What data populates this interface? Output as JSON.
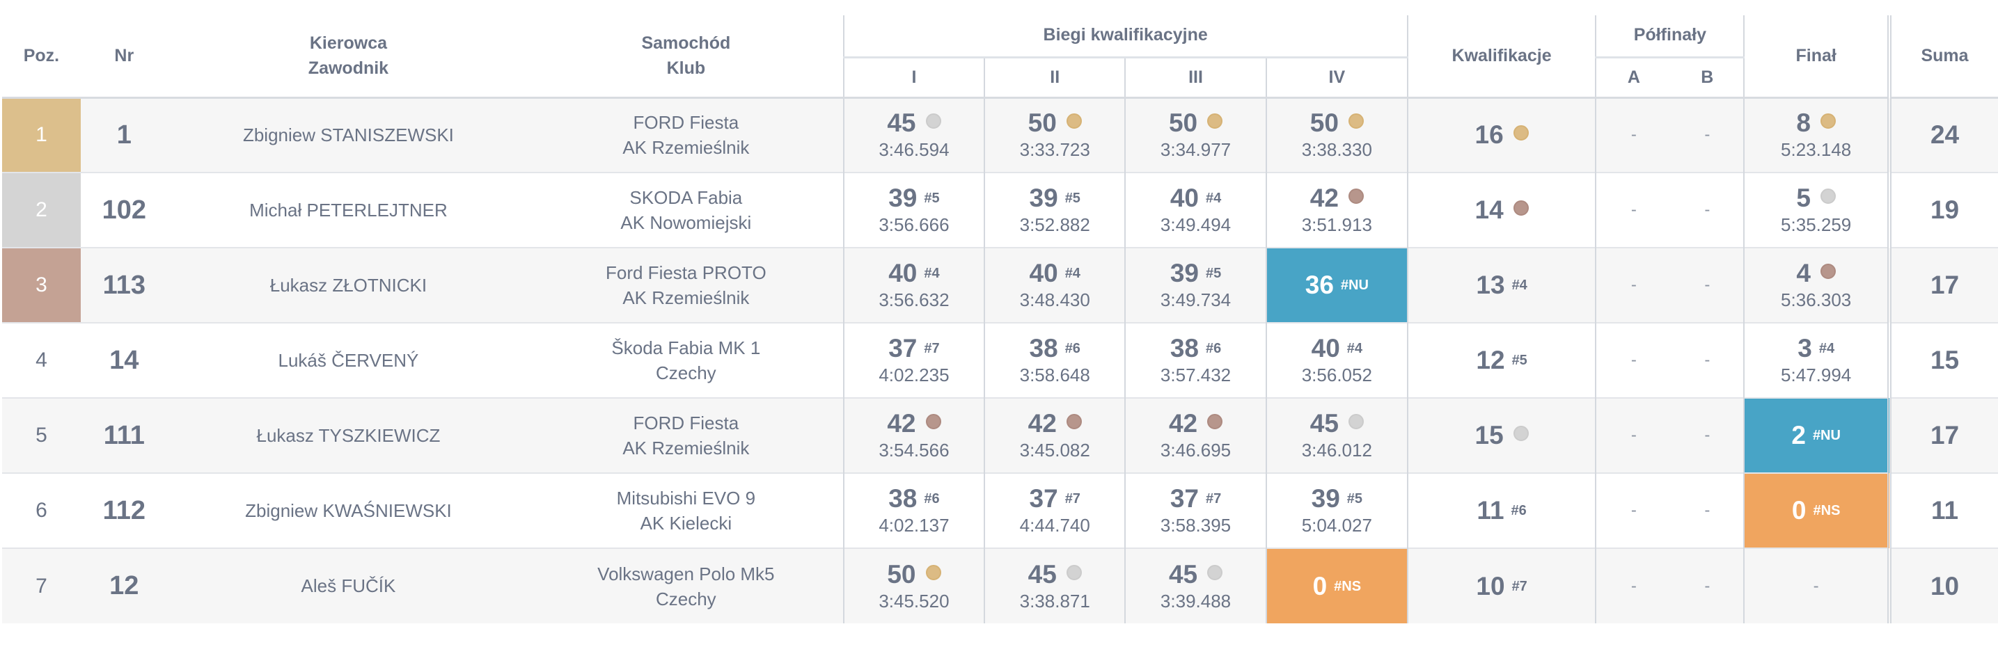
{
  "header": {
    "pos": "Poz.",
    "nr": "Nr",
    "driver_line1": "Kierowca",
    "driver_line2": "Zawodnik",
    "car_line1": "Samochód",
    "car_line2": "Klub",
    "heats": "Biegi kwalifikacyjne",
    "heat_labels": [
      "I",
      "II",
      "III",
      "IV"
    ],
    "qualification": "Kwalifikacje",
    "semifinals": "Półfinały",
    "semi_labels": [
      "A",
      "B"
    ],
    "final": "Finał",
    "sum": "Suma"
  },
  "rows": [
    {
      "pos": "1",
      "nr": "1",
      "driver": "Zbigniew STANISZEWSKI",
      "car": "FORD Fiesta",
      "club": "AK Rzemieślnik",
      "heats": [
        {
          "pts": "45",
          "mark": "silver",
          "time": "3:46.594"
        },
        {
          "pts": "50",
          "mark": "gold",
          "time": "3:33.723"
        },
        {
          "pts": "50",
          "mark": "gold",
          "time": "3:34.977"
        },
        {
          "pts": "50",
          "mark": "gold",
          "time": "3:38.330"
        }
      ],
      "qual": {
        "pts": "16",
        "mark": "gold"
      },
      "semi_a": "-",
      "semi_b": "-",
      "final": {
        "pts": "8",
        "mark": "gold",
        "time": "5:23.148"
      },
      "sum": "24"
    },
    {
      "pos": "2",
      "nr": "102",
      "driver": "Michał PETERLEJTNER",
      "car": "SKODA Fabia",
      "club": "AK Nowomiejski",
      "heats": [
        {
          "pts": "39",
          "tag": "#5",
          "time": "3:56.666"
        },
        {
          "pts": "39",
          "tag": "#5",
          "time": "3:52.882"
        },
        {
          "pts": "40",
          "tag": "#4",
          "time": "3:49.494"
        },
        {
          "pts": "42",
          "mark": "bronze",
          "time": "3:51.913"
        }
      ],
      "qual": {
        "pts": "14",
        "mark": "bronze"
      },
      "semi_a": "-",
      "semi_b": "-",
      "final": {
        "pts": "5",
        "mark": "silver",
        "time": "5:35.259"
      },
      "sum": "19"
    },
    {
      "pos": "3",
      "nr": "113",
      "driver": "Łukasz ZŁOTNICKI",
      "car": "Ford Fiesta PROTO",
      "club": "AK Rzemieślnik",
      "heats": [
        {
          "pts": "40",
          "tag": "#4",
          "time": "3:56.632"
        },
        {
          "pts": "40",
          "tag": "#4",
          "time": "3:48.430"
        },
        {
          "pts": "39",
          "tag": "#5",
          "time": "3:49.734"
        },
        {
          "pts": "36",
          "tag": "#NU",
          "highlight": "blue"
        }
      ],
      "qual": {
        "pts": "13",
        "tag": "#4"
      },
      "semi_a": "-",
      "semi_b": "-",
      "final": {
        "pts": "4",
        "mark": "bronze",
        "time": "5:36.303"
      },
      "sum": "17"
    },
    {
      "pos": "4",
      "nr": "14",
      "driver": "Lukáš ČERVENÝ",
      "car": "Škoda Fabia MK 1",
      "club": "Czechy",
      "heats": [
        {
          "pts": "37",
          "tag": "#7",
          "time": "4:02.235"
        },
        {
          "pts": "38",
          "tag": "#6",
          "time": "3:58.648"
        },
        {
          "pts": "38",
          "tag": "#6",
          "time": "3:57.432"
        },
        {
          "pts": "40",
          "tag": "#4",
          "time": "3:56.052"
        }
      ],
      "qual": {
        "pts": "12",
        "tag": "#5"
      },
      "semi_a": "-",
      "semi_b": "-",
      "final": {
        "pts": "3",
        "tag": "#4",
        "time": "5:47.994"
      },
      "sum": "15"
    },
    {
      "pos": "5",
      "nr": "111",
      "driver": "Łukasz TYSZKIEWICZ",
      "car": "FORD Fiesta",
      "club": "AK Rzemieślnik",
      "heats": [
        {
          "pts": "42",
          "mark": "bronze",
          "time": "3:54.566"
        },
        {
          "pts": "42",
          "mark": "bronze",
          "time": "3:45.082"
        },
        {
          "pts": "42",
          "mark": "bronze",
          "time": "3:46.695"
        },
        {
          "pts": "45",
          "mark": "silver",
          "time": "3:46.012"
        }
      ],
      "qual": {
        "pts": "15",
        "mark": "silver"
      },
      "semi_a": "-",
      "semi_b": "-",
      "final": {
        "pts": "2",
        "tag": "#NU",
        "highlight": "blue"
      },
      "sum": "17"
    },
    {
      "pos": "6",
      "nr": "112",
      "driver": "Zbigniew KWAŚNIEWSKI",
      "car": "Mitsubishi EVO 9",
      "club": "AK Kielecki",
      "heats": [
        {
          "pts": "38",
          "tag": "#6",
          "time": "4:02.137"
        },
        {
          "pts": "37",
          "tag": "#7",
          "time": "4:44.740"
        },
        {
          "pts": "37",
          "tag": "#7",
          "time": "3:58.395"
        },
        {
          "pts": "39",
          "tag": "#5",
          "time": "5:04.027"
        }
      ],
      "qual": {
        "pts": "11",
        "tag": "#6"
      },
      "semi_a": "-",
      "semi_b": "-",
      "final": {
        "pts": "0",
        "tag": "#NS",
        "highlight": "orange"
      },
      "sum": "11"
    },
    {
      "pos": "7",
      "nr": "12",
      "driver": "Aleš FUČÍK",
      "car": "Volkswagen Polo Mk5",
      "club": "Czechy",
      "heats": [
        {
          "pts": "50",
          "mark": "gold",
          "time": "3:45.520"
        },
        {
          "pts": "45",
          "mark": "silver",
          "time": "3:38.871"
        },
        {
          "pts": "45",
          "mark": "silver",
          "time": "3:39.488"
        },
        {
          "pts": "0",
          "tag": "#NS",
          "highlight": "orange"
        }
      ],
      "qual": {
        "pts": "10",
        "tag": "#7"
      },
      "semi_a": "-",
      "semi_b": "-",
      "final": {
        "dash": "-"
      },
      "sum": "10"
    }
  ]
}
